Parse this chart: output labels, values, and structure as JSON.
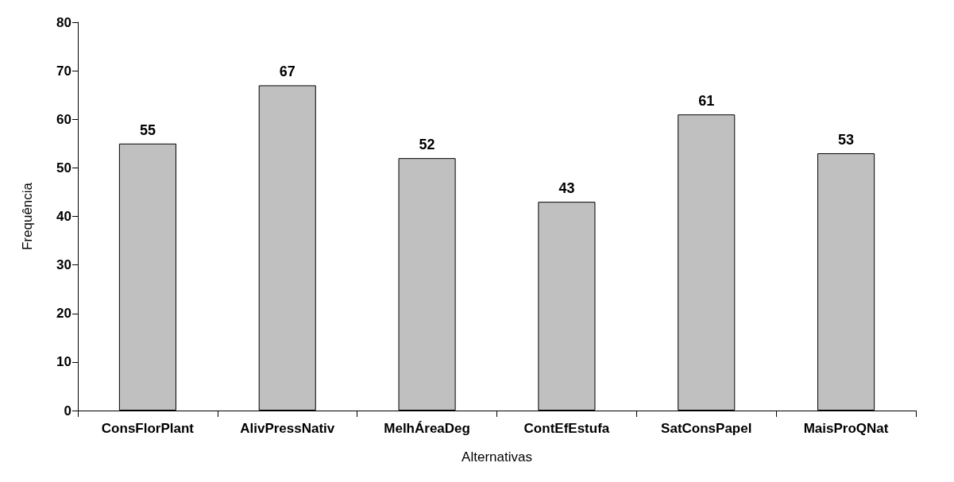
{
  "chart_data": {
    "type": "bar",
    "xlabel": "Alternativas",
    "ylabel": "Frequência",
    "categories": [
      "ConsFlorPlant",
      "AlivPressNativ",
      "MelhÁreaDeg",
      "ContEfEstufa",
      "SatConsPapel",
      "MaisProQNat"
    ],
    "values": [
      55,
      67,
      52,
      43,
      61,
      53
    ],
    "color": "#c0c0c0",
    "ylim": [
      0,
      80
    ],
    "yticks": [
      0,
      10,
      20,
      30,
      40,
      50,
      60,
      70,
      80
    ],
    "grid": false,
    "data_labels": true
  }
}
